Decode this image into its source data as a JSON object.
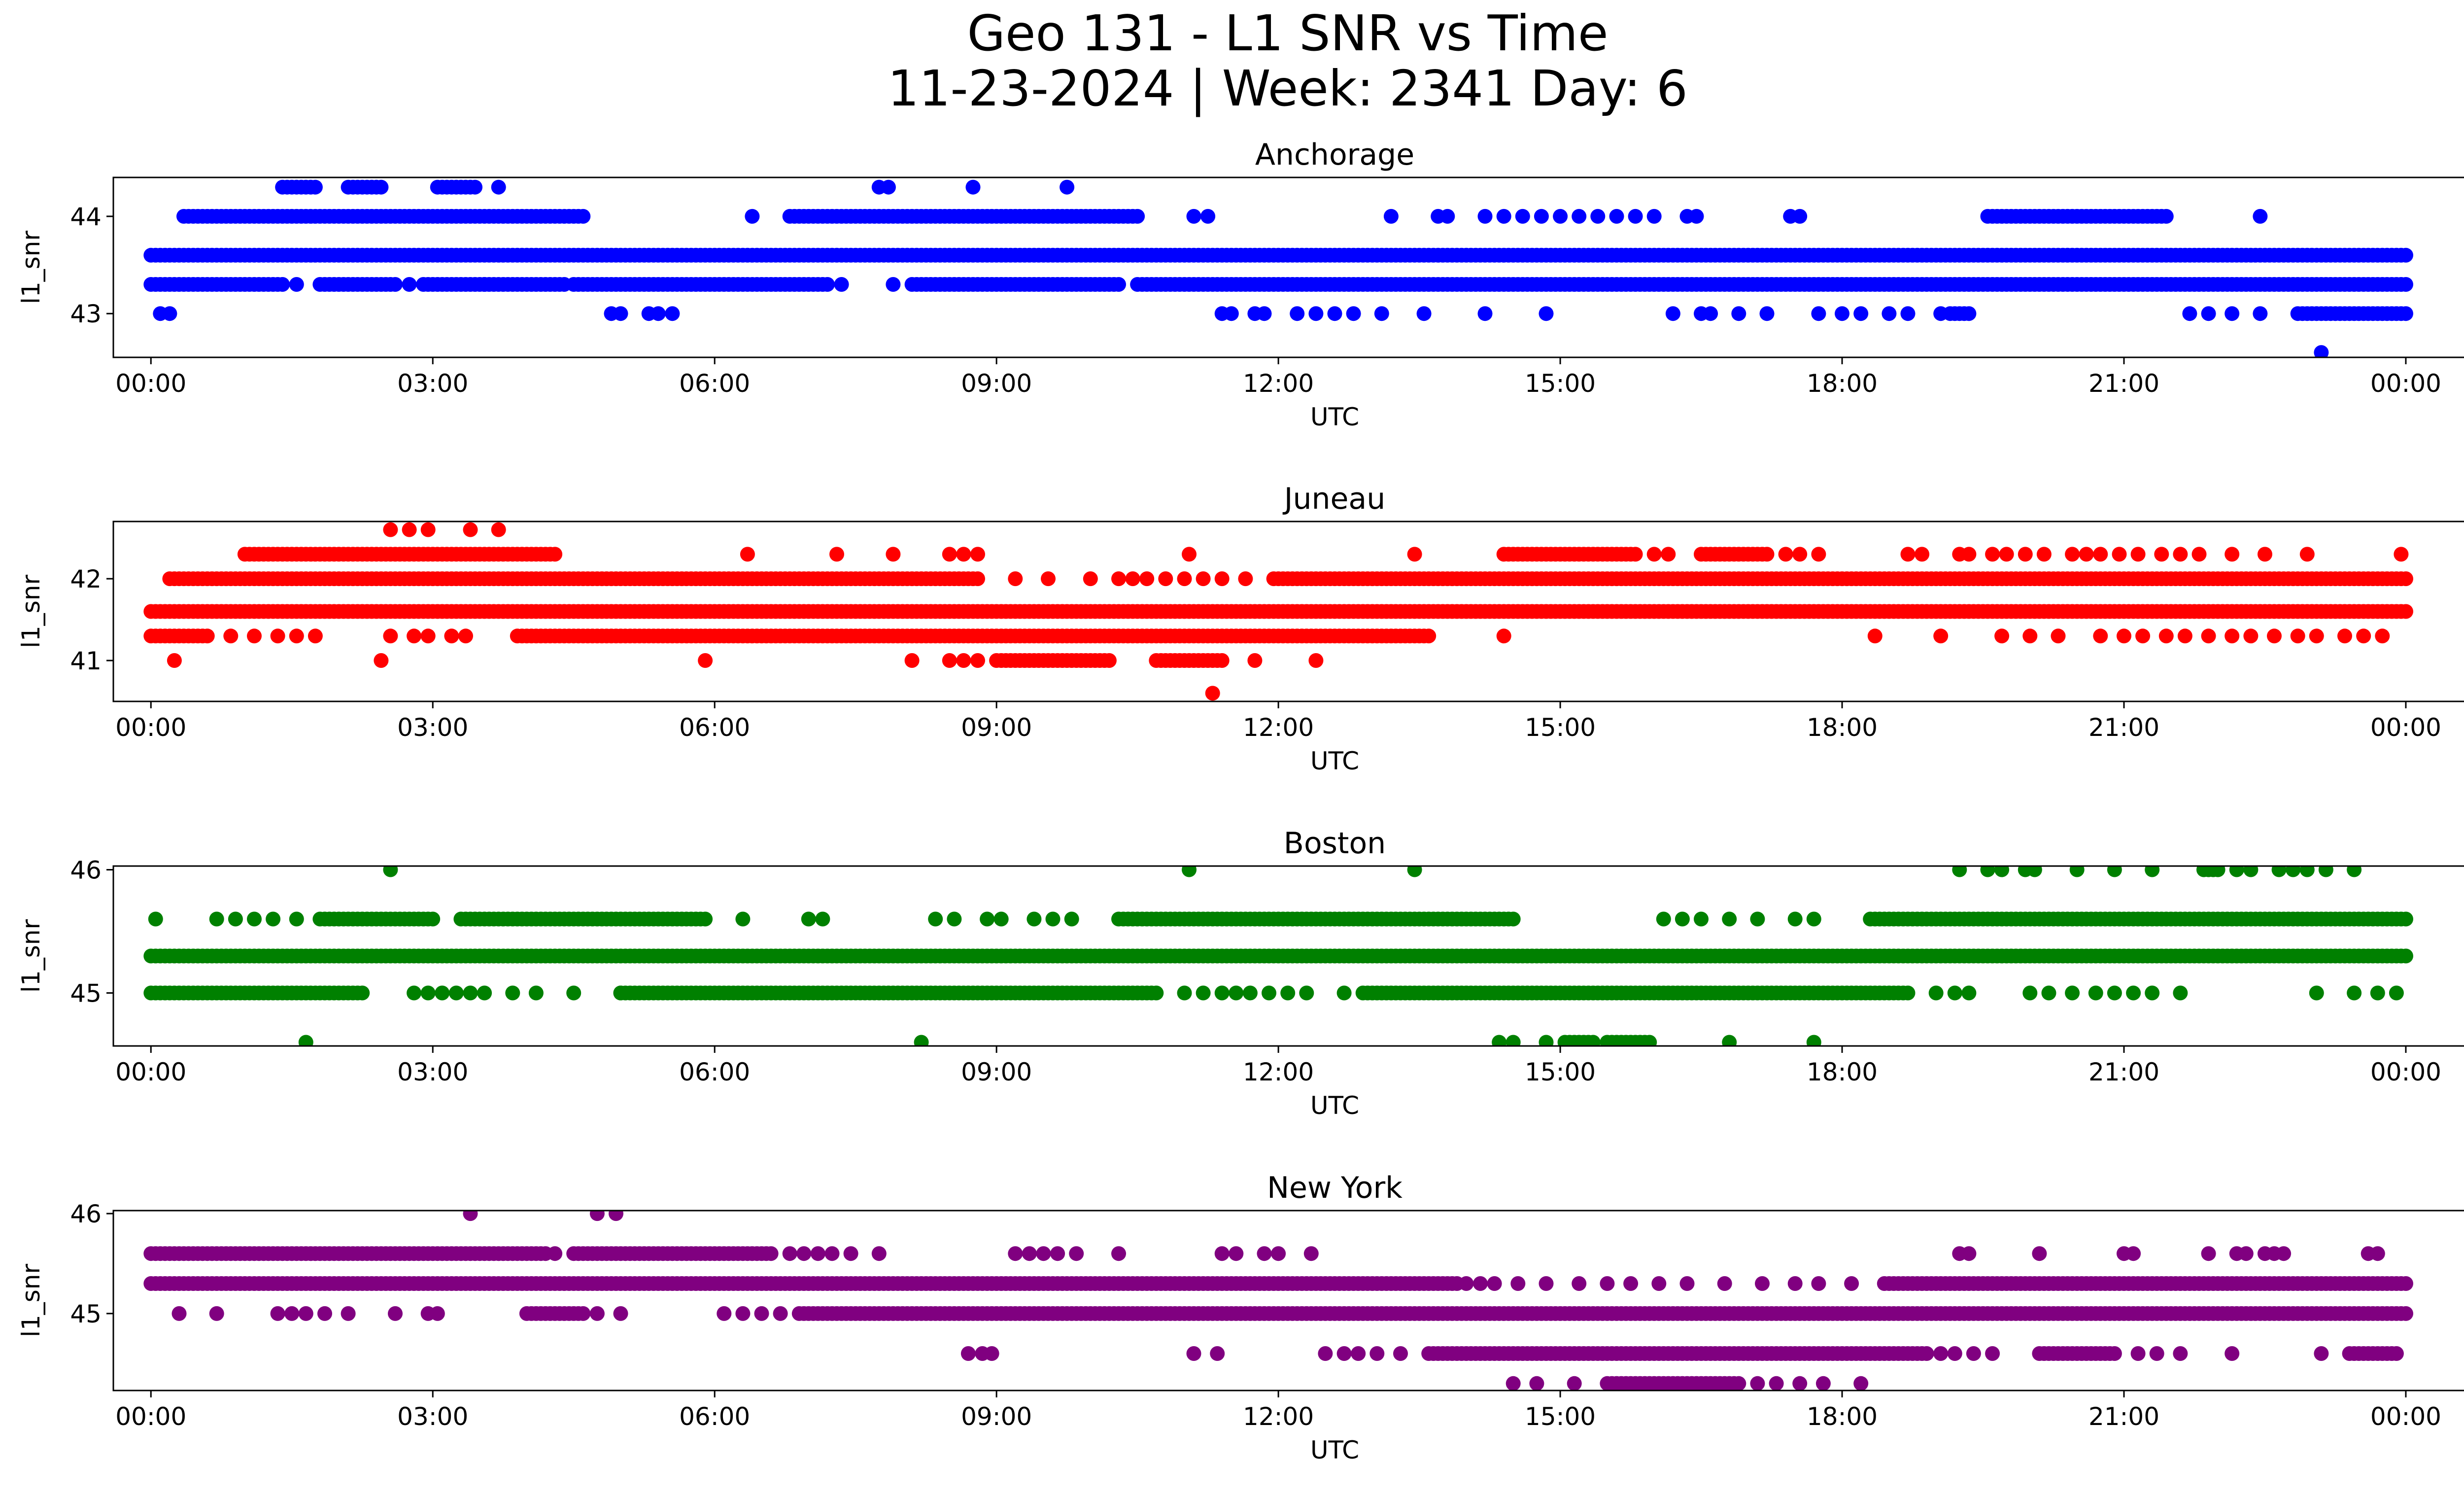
{
  "figure": {
    "title_line1": "Geo 131 - L1 SNR vs Time",
    "title_line2": "11-23-2024 | Week: 2341 Day: 6"
  },
  "chart_data": [
    {
      "type": "scatter",
      "title": "Anchorage",
      "xlabel": "UTC",
      "ylabel": "l1_snr",
      "color": "#0000ff",
      "xlim": [
        -0.4,
        25.6
      ],
      "ylim": [
        42.55,
        44.4
      ],
      "x_ticks": [
        "00:00",
        "03:00",
        "06:00",
        "09:00",
        "12:00",
        "15:00",
        "18:00",
        "21:00",
        "00:00"
      ],
      "y_ticks": [
        43,
        44
      ],
      "series": [
        {
          "name": "level 43.6",
          "y": 43.6,
          "segments": [
            [
              0.0,
              24.0
            ]
          ],
          "points": []
        },
        {
          "name": "level 43.3",
          "y": 43.3,
          "segments": [
            [
              0.0,
              1.4
            ],
            [
              1.8,
              2.6
            ],
            [
              2.9,
              4.4
            ],
            [
              4.5,
              7.2
            ],
            [
              8.1,
              10.3
            ],
            [
              10.5,
              24.0
            ]
          ],
          "points": [
            1.55,
            2.75,
            3.55,
            7.35,
            7.9
          ]
        },
        {
          "name": "level 44.0",
          "y": 44.0,
          "segments": [
            [
              0.35,
              4.6
            ],
            [
              6.8,
              10.5
            ],
            [
              19.55,
              21.45
            ]
          ],
          "points": [
            6.4,
            11.1,
            11.25,
            13.2,
            13.7,
            13.8,
            14.2,
            14.4,
            14.6,
            14.8,
            15.0,
            15.2,
            15.4,
            15.6,
            15.8,
            16.0,
            16.35,
            16.45,
            17.45,
            17.55,
            22.45
          ]
        },
        {
          "name": "level 43.0",
          "y": 43.0,
          "segments": [
            [
              19.15,
              19.35
            ],
            [
              22.85,
              24.0
            ]
          ],
          "points": [
            0.1,
            0.2,
            4.9,
            5.0,
            5.3,
            5.4,
            5.55,
            11.4,
            11.5,
            11.75,
            11.85,
            12.2,
            12.4,
            12.6,
            12.8,
            13.1,
            13.55,
            14.2,
            14.85,
            16.2,
            16.5,
            16.6,
            16.9,
            17.2,
            17.75,
            18.0,
            18.2,
            18.5,
            18.7,
            19.05,
            21.7,
            21.9,
            22.15,
            22.45
          ]
        },
        {
          "name": "level 44.3",
          "y": 44.3,
          "segments": [
            [
              1.4,
              1.75
            ],
            [
              2.1,
              2.45
            ],
            [
              3.05,
              3.45
            ]
          ],
          "points": [
            3.7,
            7.75,
            7.85,
            8.75,
            9.75
          ]
        },
        {
          "name": "outlier",
          "y": 42.6,
          "segments": [],
          "points": [
            23.1
          ]
        }
      ]
    },
    {
      "type": "scatter",
      "title": "Juneau",
      "xlabel": "UTC",
      "ylabel": "l1_snr",
      "color": "#ff0000",
      "xlim": [
        -0.4,
        25.6
      ],
      "ylim": [
        40.5,
        42.7
      ],
      "x_ticks": [
        "00:00",
        "03:00",
        "06:00",
        "09:00",
        "12:00",
        "15:00",
        "18:00",
        "21:00",
        "00:00"
      ],
      "y_ticks": [
        41,
        42
      ],
      "series": [
        {
          "name": "level 41.6",
          "y": 41.6,
          "segments": [
            [
              0.0,
              24.0
            ]
          ],
          "points": []
        },
        {
          "name": "level 42.0",
          "y": 42.0,
          "segments": [
            [
              0.2,
              8.8
            ],
            [
              12.0,
              24.0
            ]
          ],
          "points": [
            9.2,
            9.55,
            10.0,
            10.3,
            10.45,
            10.6,
            10.8,
            11.0,
            11.2,
            11.4,
            11.65,
            11.95
          ]
        },
        {
          "name": "level 41.3",
          "y": 41.3,
          "segments": [
            [
              0.0,
              0.6
            ],
            [
              3.9,
              13.6
            ]
          ],
          "points": [
            0.85,
            1.1,
            1.35,
            1.55,
            1.75,
            2.55,
            2.8,
            2.95,
            3.2,
            3.35,
            14.4,
            18.35,
            19.05,
            19.7,
            20.0,
            20.3,
            20.75,
            21.0,
            21.2,
            21.45,
            21.65,
            21.9,
            22.15,
            22.35,
            22.6,
            22.85,
            23.05,
            23.35,
            23.55,
            23.75
          ]
        },
        {
          "name": "level 42.3",
          "y": 42.3,
          "segments": [
            [
              1.0,
              4.3
            ],
            [
              14.4,
              15.8
            ],
            [
              16.5,
              17.2
            ]
          ],
          "points": [
            6.35,
            7.3,
            7.9,
            8.5,
            8.65,
            8.8,
            11.05,
            13.45,
            16.0,
            16.15,
            17.4,
            17.55,
            17.75,
            18.7,
            18.85,
            19.25,
            19.35,
            19.6,
            19.75,
            19.95,
            20.15,
            20.45,
            20.6,
            20.75,
            20.95,
            21.15,
            21.4,
            21.6,
            21.8,
            22.15,
            22.5,
            22.95,
            23.95
          ]
        },
        {
          "name": "level 42.6",
          "y": 42.6,
          "segments": [],
          "points": [
            2.55,
            2.75,
            2.95,
            3.4,
            3.7
          ]
        },
        {
          "name": "level 41.0",
          "y": 41.0,
          "segments": [
            [
              9.0,
              10.2
            ],
            [
              10.7,
              11.4
            ]
          ],
          "points": [
            0.25,
            2.45,
            5.9,
            8.1,
            8.5,
            8.65,
            8.8,
            11.75,
            12.4
          ]
        },
        {
          "name": "outlier",
          "y": 40.6,
          "segments": [],
          "points": [
            11.3
          ]
        }
      ]
    },
    {
      "type": "scatter",
      "title": "Boston",
      "xlabel": "UTC",
      "ylabel": "l1_snr",
      "color": "#008000",
      "xlim": [
        -0.4,
        25.6
      ],
      "ylim": [
        44.57,
        46.03
      ],
      "x_ticks": [
        "00:00",
        "03:00",
        "06:00",
        "09:00",
        "12:00",
        "15:00",
        "18:00",
        "21:00",
        "00:00"
      ],
      "y_ticks": [
        45,
        46
      ],
      "series": [
        {
          "name": "level 45.3",
          "y": 45.3,
          "segments": [
            [
              0.0,
              24.0
            ]
          ],
          "points": []
        },
        {
          "name": "level 45.0",
          "y": 45.0,
          "segments": [
            [
              0.0,
              2.2
            ],
            [
              5.0,
              10.7
            ],
            [
              12.9,
              18.7
            ]
          ],
          "points": [
            2.25,
            2.8,
            2.95,
            3.1,
            3.25,
            3.4,
            3.55,
            3.85,
            4.1,
            4.5,
            5.0,
            11.0,
            11.2,
            11.4,
            11.55,
            11.7,
            11.9,
            12.1,
            12.3,
            12.7,
            19.0,
            19.2,
            19.35,
            20.0,
            20.2,
            20.45,
            20.7,
            20.9,
            21.1,
            21.3,
            21.6,
            23.05,
            23.45,
            23.7,
            23.9
          ]
        },
        {
          "name": "level 45.6",
          "y": 45.6,
          "segments": [
            [
              1.8,
              3.0
            ],
            [
              3.3,
              5.9
            ],
            [
              10.3,
              14.5
            ],
            [
              18.3,
              24.0
            ]
          ],
          "points": [
            0.05,
            0.7,
            0.9,
            1.1,
            1.3,
            1.55,
            6.3,
            7.0,
            7.15,
            8.35,
            8.55,
            8.9,
            9.05,
            9.4,
            9.6,
            9.8,
            16.1,
            16.3,
            16.5,
            16.8,
            17.1,
            17.5,
            17.7
          ]
        },
        {
          "name": "level 46.0",
          "y": 46.0,
          "segments": [
            [
              21.85,
              22.0
            ]
          ],
          "points": [
            2.55,
            11.05,
            13.45,
            19.25,
            19.55,
            19.7,
            19.95,
            20.05,
            20.5,
            20.9,
            21.3,
            22.2,
            22.35,
            22.65,
            22.8,
            22.95,
            23.15,
            23.45
          ]
        },
        {
          "name": "level 44.6",
          "y": 44.6,
          "segments": [
            [
              15.05,
              15.35
            ],
            [
              15.55,
              15.95
            ]
          ],
          "points": [
            1.65,
            8.2,
            14.35,
            14.5,
            14.85,
            15.5,
            16.8,
            17.7
          ]
        }
      ]
    },
    {
      "type": "scatter",
      "title": "New York",
      "xlabel": "UTC",
      "ylabel": "l1_snr",
      "color": "#800080",
      "xlim": [
        -0.4,
        25.6
      ],
      "ylim": [
        44.23,
        46.03
      ],
      "x_ticks": [
        "00:00",
        "03:00",
        "06:00",
        "09:00",
        "12:00",
        "15:00",
        "18:00",
        "21:00",
        "00:00"
      ],
      "y_ticks": [
        45,
        46
      ],
      "series": [
        {
          "name": "level 45.3",
          "y": 45.3,
          "segments": [
            [
              0.0,
              13.9
            ],
            [
              18.45,
              24.0
            ]
          ],
          "points": [
            14.0,
            14.15,
            14.3,
            14.55,
            14.85,
            15.2,
            15.5,
            15.75,
            16.05,
            16.35,
            16.75,
            17.15,
            17.5,
            17.75,
            18.1
          ]
        },
        {
          "name": "level 45.6",
          "y": 45.6,
          "segments": [
            [
              0.0,
              4.2
            ],
            [
              4.5,
              6.6
            ]
          ],
          "points": [
            4.3,
            6.8,
            6.95,
            7.1,
            7.25,
            7.45,
            7.75,
            9.2,
            9.35,
            9.5,
            9.65,
            9.85,
            10.3,
            11.4,
            11.55,
            11.85,
            12.0,
            12.35,
            19.25,
            19.35,
            20.1,
            21.0,
            21.1,
            21.9,
            22.2,
            22.3,
            22.5,
            22.6,
            22.7,
            23.6,
            23.7
          ]
        },
        {
          "name": "level 45.0",
          "y": 45.0,
          "segments": [
            [
              4.0,
              4.6
            ],
            [
              6.9,
              24.0
            ]
          ],
          "points": [
            0.3,
            0.7,
            1.35,
            1.5,
            1.65,
            1.85,
            2.1,
            2.6,
            2.95,
            3.05,
            4.75,
            5.0,
            6.1,
            6.3,
            6.5,
            6.7
          ]
        },
        {
          "name": "level 46.0",
          "y": 46.0,
          "segments": [],
          "points": [
            3.4,
            4.75,
            4.95
          ]
        },
        {
          "name": "level 44.6",
          "y": 44.6,
          "segments": [
            [
              13.6,
              18.9
            ],
            [
              20.1,
              20.9
            ],
            [
              23.4,
              23.9
            ]
          ],
          "points": [
            8.7,
            8.85,
            8.95,
            11.1,
            11.35,
            12.5,
            12.7,
            12.85,
            13.05,
            13.3,
            19.05,
            19.2,
            19.4,
            19.6,
            21.15,
            21.35,
            21.6,
            22.15,
            23.1
          ]
        },
        {
          "name": "level 44.3",
          "y": 44.3,
          "segments": [
            [
              15.5,
              16.9
            ]
          ],
          "points": [
            14.5,
            14.75,
            15.15,
            17.1,
            17.3,
            17.55,
            17.8,
            18.2
          ]
        }
      ]
    }
  ]
}
